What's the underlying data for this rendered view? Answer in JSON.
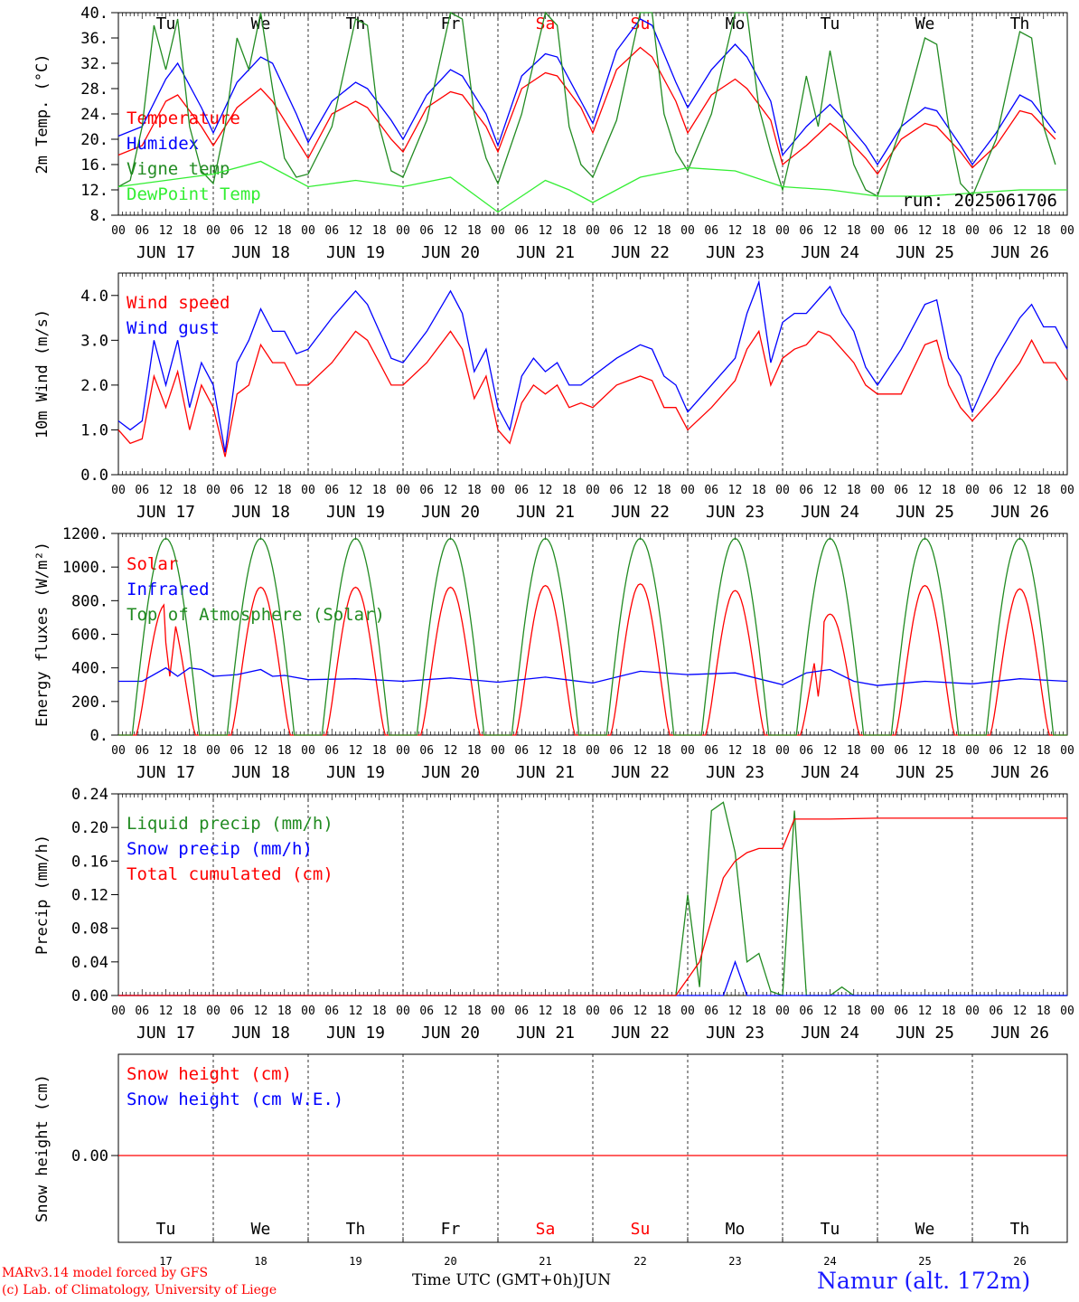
{
  "colors": {
    "red": "#ff0000",
    "green": "#228b22",
    "blue": "#0000ff",
    "lightgreen": "#33ee33",
    "black": "#000000",
    "location": "#1a1aff"
  },
  "days": {
    "dates": [
      "JUN 17",
      "JUN 18",
      "JUN 19",
      "JUN 20",
      "JUN 21",
      "JUN 22",
      "JUN 23",
      "JUN 24",
      "JUN 25",
      "JUN 26"
    ],
    "weekdays": [
      "Tu",
      "We",
      "Th",
      "Fr",
      "Sa",
      "Su",
      "Mo",
      "Tu",
      "We",
      "Th"
    ],
    "day_numbers": [
      "17",
      "18",
      "19",
      "20",
      "21",
      "22",
      "23",
      "24",
      "25",
      "26"
    ],
    "weekend_flags": [
      false,
      false,
      false,
      false,
      true,
      true,
      false,
      false,
      false,
      false
    ],
    "hour_labels": [
      "00",
      "06",
      "12",
      "18"
    ],
    "final_hour_label": "00"
  },
  "chart_data": [
    {
      "type": "line",
      "ylabel": "2m Temp. (°C)",
      "ylim": [
        8,
        40
      ],
      "yticks": [
        "8.",
        "12.",
        "16.",
        "20.",
        "24.",
        "28.",
        "32.",
        "36.",
        "40."
      ],
      "x_unit": "hours since JUN 17 00 UTC",
      "show_weekdays_top": true,
      "annotation": "run: 2025061706",
      "series": [
        {
          "name": "Temperature",
          "color": "red",
          "x": [
            0,
            6,
            12,
            15,
            21,
            24,
            30,
            36,
            39,
            45,
            48,
            54,
            60,
            63,
            69,
            72,
            78,
            84,
            87,
            93,
            96,
            102,
            108,
            111,
            117,
            120,
            126,
            132,
            135,
            141,
            144,
            150,
            156,
            159,
            165,
            168,
            174,
            180,
            183,
            189,
            192,
            198,
            204,
            207,
            213,
            216,
            222,
            228,
            231,
            237
          ],
          "y": [
            17.5,
            19,
            26,
            27,
            22,
            19,
            25,
            28,
            26,
            20,
            17,
            24,
            26,
            25,
            20,
            18,
            25,
            27.5,
            27,
            22,
            18,
            28,
            30.5,
            30,
            25,
            21,
            31,
            34.5,
            33,
            26,
            21,
            27,
            29.5,
            28,
            23,
            16,
            19,
            22.5,
            21,
            17,
            14.5,
            20,
            22.5,
            22,
            18,
            15.5,
            19,
            24.5,
            24,
            20
          ]
        },
        {
          "name": "Humidex",
          "color": "blue",
          "x": [
            0,
            6,
            12,
            15,
            21,
            24,
            30,
            36,
            39,
            45,
            48,
            54,
            60,
            63,
            69,
            72,
            78,
            84,
            87,
            93,
            96,
            102,
            108,
            111,
            117,
            120,
            126,
            132,
            135,
            141,
            144,
            150,
            156,
            159,
            165,
            168,
            174,
            180,
            183,
            189,
            192,
            198,
            204,
            207,
            213,
            216,
            222,
            228,
            231,
            237
          ],
          "y": [
            20.5,
            22,
            29.5,
            32,
            25,
            21,
            29,
            33,
            32,
            24,
            19.5,
            26,
            29,
            28,
            23,
            20,
            27,
            31,
            30,
            24,
            19,
            30,
            33.5,
            33,
            26,
            22.5,
            34,
            39,
            38,
            29,
            25,
            31,
            35,
            33,
            26,
            17.5,
            22,
            25.5,
            23.5,
            19,
            16,
            22,
            25,
            24.5,
            19,
            16,
            21,
            27,
            26,
            21
          ]
        },
        {
          "name": "Vigne temp",
          "color": "green",
          "x": [
            0,
            3,
            6,
            9,
            12,
            15,
            18,
            21,
            24,
            27,
            30,
            33,
            36,
            39,
            42,
            45,
            48,
            54,
            60,
            63,
            66,
            69,
            72,
            78,
            84,
            87,
            90,
            93,
            96,
            102,
            108,
            111,
            114,
            117,
            120,
            126,
            132,
            135,
            138,
            141,
            144,
            150,
            156,
            159,
            162,
            165,
            168,
            171,
            174,
            177,
            180,
            183,
            186,
            189,
            192,
            198,
            204,
            207,
            210,
            213,
            216,
            222,
            228,
            231,
            234,
            237
          ],
          "y": [
            12.5,
            13.5,
            22,
            38,
            31,
            39,
            22,
            15,
            13,
            22,
            36,
            31,
            40,
            28,
            17,
            14,
            14.5,
            22,
            39,
            38,
            22,
            15,
            14,
            23,
            40,
            39,
            24,
            17,
            13,
            24,
            40,
            38,
            22,
            16,
            14,
            23,
            40,
            40,
            24,
            18,
            15,
            24,
            40,
            40,
            25,
            18,
            12,
            20,
            30,
            22,
            34,
            24,
            16,
            12,
            11,
            22,
            36,
            35,
            22,
            13,
            11,
            20,
            37,
            36,
            22,
            16
          ]
        },
        {
          "name": "DewPoint Temp",
          "color": "lightgreen",
          "x": [
            0,
            12,
            24,
            36,
            48,
            60,
            72,
            84,
            96,
            102,
            108,
            114,
            120,
            132,
            144,
            156,
            168,
            180,
            192,
            204,
            216,
            228,
            240
          ],
          "y": [
            12.5,
            13.5,
            14.5,
            16.5,
            12.5,
            13.5,
            12.5,
            14,
            8.5,
            11,
            13.5,
            12,
            10,
            14,
            15.5,
            15,
            12.5,
            12,
            11,
            11,
            11.5,
            12,
            12
          ]
        }
      ]
    },
    {
      "type": "line",
      "ylabel": "10m Wind (m/s)",
      "ylim": [
        0,
        4.5
      ],
      "yticks": [
        "0.0",
        "1.0",
        "2.0",
        "3.0",
        "4.0"
      ],
      "x_unit": "hours since JUN 17 00 UTC",
      "series": [
        {
          "name": "Wind speed",
          "color": "red",
          "x": [
            0,
            3,
            6,
            9,
            12,
            15,
            18,
            21,
            24,
            27,
            30,
            33,
            36,
            39,
            42,
            45,
            48,
            54,
            60,
            63,
            66,
            69,
            72,
            78,
            84,
            87,
            90,
            93,
            96,
            99,
            102,
            105,
            108,
            111,
            114,
            117,
            120,
            126,
            132,
            135,
            138,
            141,
            144,
            150,
            156,
            159,
            162,
            165,
            168,
            171,
            174,
            177,
            180,
            183,
            186,
            189,
            192,
            198,
            204,
            207,
            210,
            213,
            216,
            222,
            228,
            231,
            234,
            237,
            240
          ],
          "y": [
            1.0,
            0.7,
            0.8,
            2.2,
            1.5,
            2.3,
            1.0,
            2.0,
            1.5,
            0.4,
            1.8,
            2.0,
            2.9,
            2.5,
            2.5,
            2.0,
            2.0,
            2.5,
            3.2,
            3.0,
            2.5,
            2.0,
            2.0,
            2.5,
            3.2,
            2.8,
            1.7,
            2.2,
            1.0,
            0.7,
            1.6,
            2.0,
            1.8,
            2.0,
            1.5,
            1.6,
            1.5,
            2.0,
            2.2,
            2.1,
            1.5,
            1.5,
            1.0,
            1.5,
            2.1,
            2.8,
            3.2,
            2.0,
            2.6,
            2.8,
            2.9,
            3.2,
            3.1,
            2.8,
            2.5,
            2.0,
            1.8,
            1.8,
            2.9,
            3.0,
            2.0,
            1.5,
            1.2,
            1.8,
            2.5,
            3.0,
            2.5,
            2.5,
            2.1
          ]
        },
        {
          "name": "Wind gust",
          "color": "blue",
          "x": [
            0,
            3,
            6,
            9,
            12,
            15,
            18,
            21,
            24,
            27,
            30,
            33,
            36,
            39,
            42,
            45,
            48,
            54,
            60,
            63,
            66,
            69,
            72,
            78,
            84,
            87,
            90,
            93,
            96,
            99,
            102,
            105,
            108,
            111,
            114,
            117,
            120,
            126,
            132,
            135,
            138,
            141,
            144,
            150,
            156,
            159,
            162,
            165,
            168,
            171,
            174,
            177,
            180,
            183,
            186,
            189,
            192,
            198,
            204,
            207,
            210,
            213,
            216,
            222,
            228,
            231,
            234,
            237,
            240
          ],
          "y": [
            1.2,
            1.0,
            1.2,
            3.0,
            2.0,
            3.0,
            1.5,
            2.5,
            2.0,
            0.5,
            2.5,
            3.0,
            3.7,
            3.2,
            3.2,
            2.7,
            2.8,
            3.5,
            4.1,
            3.8,
            3.2,
            2.6,
            2.5,
            3.2,
            4.1,
            3.6,
            2.3,
            2.8,
            1.5,
            1.0,
            2.2,
            2.6,
            2.3,
            2.5,
            2.0,
            2.0,
            2.2,
            2.6,
            2.9,
            2.8,
            2.2,
            2.0,
            1.4,
            2.0,
            2.6,
            3.6,
            4.3,
            2.5,
            3.4,
            3.6,
            3.6,
            3.9,
            4.2,
            3.6,
            3.2,
            2.4,
            2.0,
            2.8,
            3.8,
            3.9,
            2.6,
            2.2,
            1.4,
            2.6,
            3.5,
            3.8,
            3.3,
            3.3,
            2.8
          ]
        }
      ]
    },
    {
      "type": "line",
      "ylabel": "Energy fluxes (W/m²)",
      "ylim": [
        0,
        1200
      ],
      "yticks": [
        "0.",
        "200.",
        "400.",
        "600.",
        "800.",
        "1000.",
        "1200."
      ],
      "x_unit": "hours since JUN 17 00 UTC",
      "series": [
        {
          "name": "Solar",
          "color": "red",
          "day_peaks": [
            780,
            880,
            880,
            880,
            890,
            900,
            860,
            720,
            890,
            870
          ],
          "day_dips": [
            {
              "day": 0,
              "hour": 13,
              "value": 350
            },
            {
              "day": 7,
              "hour": 9,
              "value": 230
            }
          ]
        },
        {
          "name": "Infrared",
          "color": "blue",
          "x": [
            0,
            6,
            12,
            15,
            18,
            21,
            24,
            30,
            36,
            39,
            42,
            48,
            60,
            72,
            84,
            96,
            108,
            120,
            132,
            144,
            156,
            168,
            174,
            180,
            186,
            192,
            204,
            216,
            228,
            240
          ],
          "y": [
            320,
            320,
            400,
            350,
            400,
            390,
            350,
            360,
            390,
            350,
            355,
            330,
            335,
            320,
            340,
            315,
            345,
            310,
            380,
            360,
            370,
            300,
            370,
            390,
            320,
            295,
            320,
            305,
            335,
            320
          ]
        },
        {
          "name": "Top of Atmosphere (Solar)",
          "color": "green",
          "day_peak": 1170,
          "rise_hour": 3.5,
          "set_hour": 20.5
        }
      ]
    },
    {
      "type": "line",
      "ylabel": "Precip (mm/h)",
      "ylim": [
        0,
        0.24
      ],
      "yticks": [
        "0.00",
        "0.04",
        "0.08",
        "0.12",
        "0.16",
        "0.20",
        "0.24"
      ],
      "x_unit": "hours since JUN 17 00 UTC",
      "series": [
        {
          "name": "Liquid precip (mm/h)",
          "color": "green",
          "x": [
            0,
            141,
            144,
            147,
            150,
            153,
            156,
            159,
            162,
            165,
            168,
            171,
            174,
            177,
            180,
            183,
            186,
            189,
            192,
            240
          ],
          "y": [
            0,
            0,
            0.12,
            0.01,
            0.22,
            0.23,
            0.17,
            0.04,
            0.05,
            0.005,
            0,
            0.22,
            0,
            0,
            0,
            0.01,
            0,
            0,
            0,
            0
          ]
        },
        {
          "name": "Snow precip (mm/h)",
          "color": "blue",
          "x": [
            0,
            153,
            156,
            159,
            162,
            240
          ],
          "y": [
            0,
            0,
            0.04,
            0,
            0,
            0
          ]
        },
        {
          "name": "Total cumulated (cm)",
          "color": "red",
          "x": [
            0,
            141,
            144,
            147,
            150,
            153,
            156,
            159,
            162,
            165,
            168,
            171,
            174,
            180,
            192,
            240
          ],
          "y": [
            0,
            0,
            0.02,
            0.04,
            0.09,
            0.14,
            0.16,
            0.17,
            0.175,
            0.175,
            0.175,
            0.21,
            0.21,
            0.21,
            0.211,
            0.211
          ]
        }
      ]
    },
    {
      "type": "line",
      "ylabel": "Snow height (cm)",
      "yticks": [
        "0.00"
      ],
      "x_unit": "hours since JUN 17 00 UTC",
      "show_weekdays_bottom": true,
      "series": [
        {
          "name": "Snow height (cm)",
          "color": "red",
          "x": [
            0,
            240
          ],
          "y": [
            0,
            0
          ]
        },
        {
          "name": "Snow height (cm W.E.)",
          "color": "blue"
        }
      ]
    }
  ],
  "footer": {
    "model": "MARv3.14 model forced by GFS",
    "credit": "(c) Lab. of Climatology, University of Liege",
    "axis_title": "Time UTC (GMT+0h)",
    "month": "JUN",
    "location": "Namur (alt. 172m)"
  }
}
